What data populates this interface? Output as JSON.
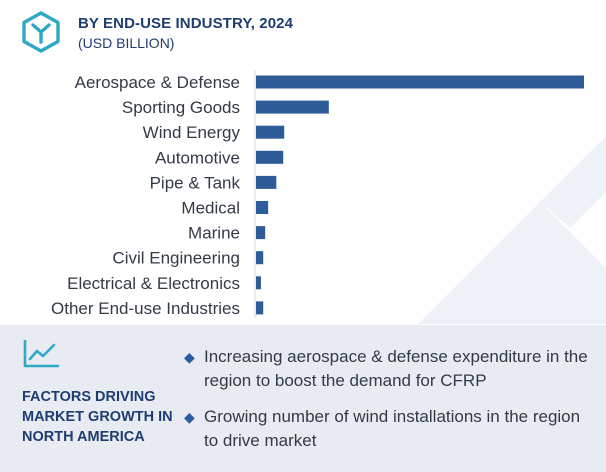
{
  "header": {
    "title": "BY END-USE INDUSTRY, 2024",
    "subtitle": "(USD BILLION)"
  },
  "colors": {
    "bar": "#2d5c99",
    "title": "#1f3d70",
    "logo": "#2fa8c6",
    "panel_bg": "#e8ebf1",
    "watermark": "#eef1f5"
  },
  "chart_data": {
    "type": "bar",
    "orientation": "horizontal",
    "categories": [
      "Aerospace & Defense",
      "Sporting Goods",
      "Wind Energy",
      "Automotive",
      "Pipe & Tank",
      "Medical",
      "Marine",
      "Civil Engineering",
      "Electrical & Electronics",
      "Other End-use Industries"
    ],
    "values": [
      100,
      22.2,
      8.6,
      8.3,
      6.2,
      3.7,
      2.8,
      2.2,
      1.5,
      2.2
    ],
    "value_scale": "relative (no axis or data labels shown)",
    "title": "BY END-USE INDUSTRY, 2024",
    "subtitle": "(USD BILLION)",
    "xlabel": "",
    "ylabel": "",
    "xlim": [
      0,
      100
    ],
    "grid": false,
    "legend": "none"
  },
  "factors": {
    "icon": "line-chart-icon",
    "title": "FACTORS DRIVING MARKET GROWTH IN NORTH AMERICA",
    "items": [
      {
        "icon": "diamond-bullet-icon",
        "text": "Increasing aerospace & defense expenditure in the region to boost the demand for CFRP"
      },
      {
        "icon": "diamond-bullet-icon",
        "text": "Growing number of wind installations in the region to drive market"
      }
    ]
  }
}
